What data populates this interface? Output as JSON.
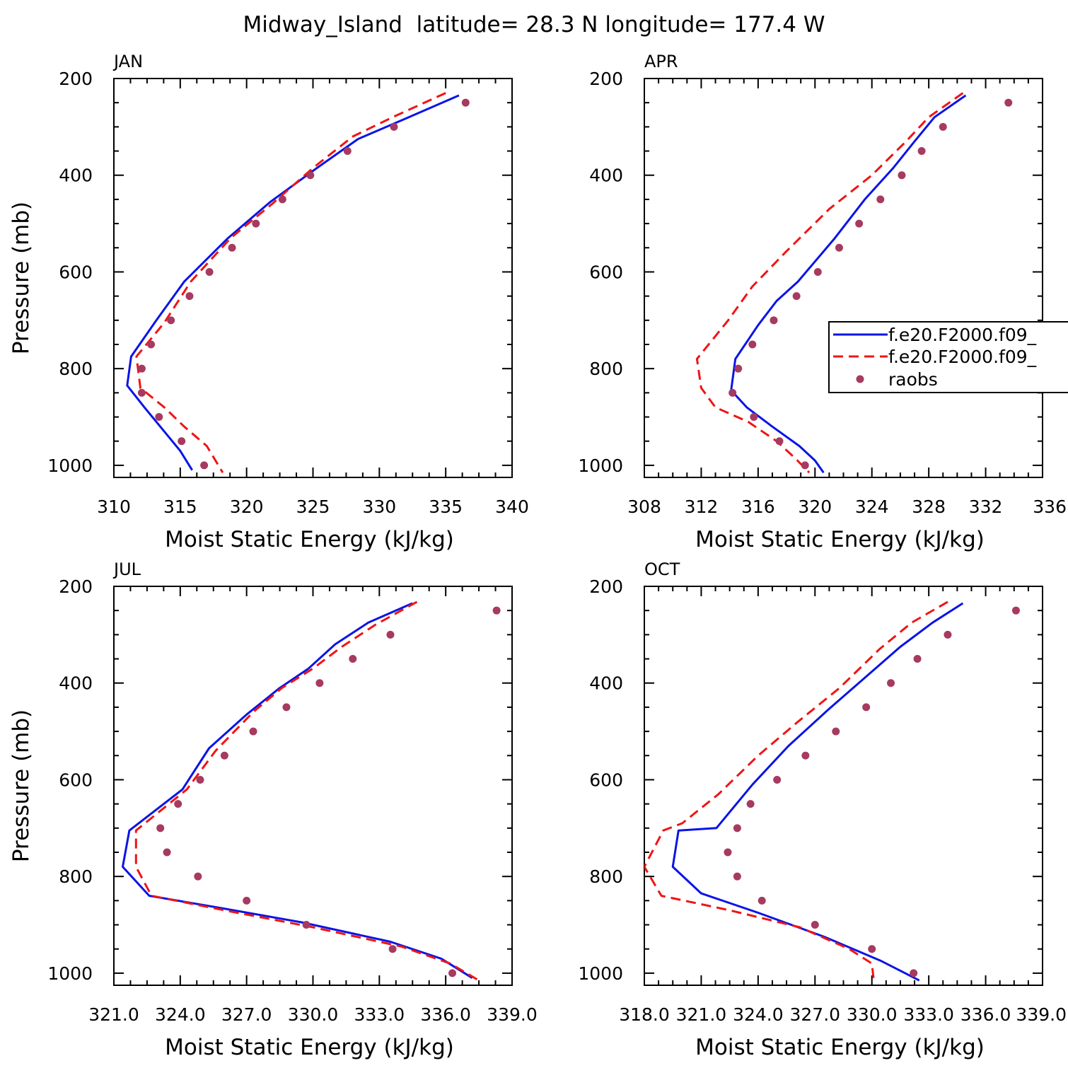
{
  "title": "Midway_Island  latitude= 28.3 N longitude= 177.4 W",
  "colors": {
    "series_solid": "#0a14e6",
    "series_dashed": "#f01414",
    "series_dots": "#a63a60"
  },
  "legend": {
    "placement": "right, overlapping APR panel",
    "entries": [
      "f.e20.F2000.f09_",
      "f.e20.F2000.f09_",
      "raobs"
    ]
  },
  "chart_data": [
    {
      "type": "line",
      "panel": "JAN",
      "title": "JAN",
      "xlabel": "Moist Static Energy (kJ/kg)",
      "ylabel": "Pressure (mb)",
      "xlim": [
        310,
        340
      ],
      "ylim": [
        1025,
        200
      ],
      "y_reversed": true,
      "xticks": [
        "310",
        "315",
        "320",
        "325",
        "330",
        "335",
        "340"
      ],
      "yticks": [
        "200",
        "400",
        "600",
        "800",
        "1000"
      ],
      "series": [
        {
          "style": "solid",
          "x": [
            336.0,
            331.8,
            328.4,
            325.3,
            321.8,
            318.6,
            315.3,
            313.2,
            311.3,
            311.0,
            312.3,
            313.8,
            315.0,
            315.9
          ],
          "y": [
            235,
            285,
            325,
            385,
            455,
            530,
            620,
            700,
            775,
            835,
            880,
            930,
            970,
            1010
          ]
        },
        {
          "style": "dashed",
          "x": [
            335.0,
            331.0,
            328.0,
            325.0,
            321.9,
            318.8,
            315.8,
            313.8,
            311.7,
            312.0,
            313.8,
            315.3,
            317.0,
            318.2
          ],
          "y": [
            230,
            280,
            320,
            385,
            460,
            530,
            620,
            705,
            775,
            840,
            880,
            920,
            960,
            1015
          ]
        },
        {
          "style": "dots",
          "x": [
            336.5,
            331.1,
            327.6,
            324.8,
            322.7,
            320.7,
            318.9,
            317.2,
            315.7,
            314.3,
            312.8,
            312.1,
            312.1,
            313.4,
            315.1,
            316.8
          ],
          "y": [
            250,
            300,
            350,
            400,
            450,
            500,
            550,
            600,
            650,
            700,
            750,
            800,
            850,
            900,
            950,
            1000
          ]
        }
      ]
    },
    {
      "type": "line",
      "panel": "APR",
      "title": "APR",
      "xlabel": "Moist Static Energy (kJ/kg)",
      "ylabel": "",
      "xlim": [
        308,
        336
      ],
      "ylim": [
        1025,
        200
      ],
      "y_reversed": true,
      "xticks": [
        "308",
        "312",
        "316",
        "320",
        "324",
        "328",
        "332",
        "336"
      ],
      "yticks": [
        "200",
        "400",
        "600",
        "800",
        "1000"
      ],
      "series": [
        {
          "style": "solid",
          "x": [
            330.6,
            328.4,
            327.0,
            325.5,
            323.5,
            321.4,
            318.8,
            317.3,
            316.0,
            314.4,
            314.1,
            315.2,
            317.0,
            318.9,
            320.0,
            320.6
          ],
          "y": [
            235,
            280,
            330,
            385,
            450,
            530,
            620,
            660,
            710,
            780,
            845,
            880,
            920,
            960,
            990,
            1015
          ]
        },
        {
          "style": "dashed",
          "x": [
            330.4,
            328.0,
            326.4,
            324.0,
            321.0,
            317.9,
            315.6,
            313.9,
            311.7,
            312.0,
            313.0,
            315.3,
            317.3,
            318.6,
            319.6
          ],
          "y": [
            230,
            280,
            330,
            400,
            470,
            560,
            630,
            700,
            780,
            840,
            880,
            910,
            950,
            985,
            1015
          ]
        },
        {
          "style": "dots",
          "x": [
            333.6,
            329.0,
            327.5,
            326.1,
            324.6,
            323.1,
            321.7,
            320.2,
            318.7,
            317.1,
            315.6,
            314.6,
            314.2,
            315.7,
            317.5,
            319.3
          ],
          "y": [
            250,
            300,
            350,
            400,
            450,
            500,
            550,
            600,
            650,
            700,
            750,
            800,
            850,
            900,
            950,
            1000
          ]
        }
      ]
    },
    {
      "type": "line",
      "panel": "JUL",
      "title": "JUL",
      "xlabel": "Moist Static Energy (kJ/kg)",
      "ylabel": "Pressure (mb)",
      "xlim": [
        321.0,
        339.0
      ],
      "ylim": [
        1025,
        200
      ],
      "y_reversed": true,
      "xticks": [
        "321.0",
        "324.0",
        "327.0",
        "330.0",
        "333.0",
        "336.0",
        "339.0"
      ],
      "yticks": [
        "200",
        "400",
        "600",
        "800",
        "1000"
      ],
      "series": [
        {
          "style": "solid",
          "x": [
            334.5,
            332.5,
            331.0,
            329.8,
            328.5,
            327.0,
            325.3,
            324.1,
            321.7,
            321.4,
            322.6,
            325.8,
            329.5,
            333.5,
            335.8,
            337.2
          ],
          "y": [
            235,
            275,
            320,
            370,
            410,
            465,
            535,
            620,
            705,
            780,
            840,
            865,
            895,
            935,
            970,
            1010
          ]
        },
        {
          "style": "dashed",
          "x": [
            334.7,
            332.8,
            331.3,
            330.0,
            328.6,
            327.3,
            325.6,
            324.3,
            322.0,
            322.0,
            322.7,
            326.0,
            330.0,
            334.0,
            336.2,
            337.5
          ],
          "y": [
            232,
            280,
            325,
            370,
            410,
            460,
            540,
            620,
            705,
            780,
            840,
            870,
            905,
            945,
            980,
            1015
          ]
        },
        {
          "style": "dots",
          "x": [
            338.3,
            333.5,
            331.8,
            330.3,
            328.8,
            327.3,
            326.0,
            324.9,
            323.9,
            323.1,
            323.4,
            324.8,
            327.0,
            329.7,
            333.6,
            336.3
          ],
          "y": [
            250,
            300,
            350,
            400,
            450,
            500,
            550,
            600,
            650,
            700,
            750,
            800,
            850,
            900,
            950,
            1000
          ]
        }
      ]
    },
    {
      "type": "line",
      "panel": "OCT",
      "title": "OCT",
      "xlabel": "Moist Static Energy (kJ/kg)",
      "ylabel": "",
      "xlim": [
        318.0,
        339.0
      ],
      "ylim": [
        1025,
        200
      ],
      "y_reversed": true,
      "xticks": [
        "318.0",
        "321.0",
        "324.0",
        "327.0",
        "330.0",
        "333.0",
        "336.0",
        "339.0"
      ],
      "yticks": [
        "200",
        "400",
        "600",
        "800",
        "1000"
      ],
      "series": [
        {
          "style": "solid",
          "x": [
            334.8,
            333.2,
            331.5,
            329.6,
            327.7,
            325.6,
            323.7,
            321.8,
            319.8,
            319.5,
            321.0,
            324.0,
            327.5,
            330.5,
            332.0,
            332.5
          ],
          "y": [
            235,
            275,
            325,
            390,
            455,
            530,
            610,
            700,
            705,
            780,
            835,
            875,
            925,
            975,
            1005,
            1015
          ]
        },
        {
          "style": "dashed",
          "x": [
            334.0,
            332.1,
            330.4,
            328.3,
            326.1,
            324.0,
            321.9,
            320.0,
            319.0,
            318.0,
            318.9,
            322.5,
            326.2,
            328.8,
            330.0,
            330.1
          ],
          "y": [
            232,
            275,
            330,
            410,
            480,
            550,
            630,
            690,
            705,
            780,
            840,
            870,
            905,
            950,
            980,
            1015
          ]
        },
        {
          "style": "dots",
          "x": [
            337.6,
            334.0,
            332.4,
            331.0,
            329.7,
            328.1,
            326.5,
            325.0,
            323.6,
            322.9,
            322.4,
            322.9,
            324.2,
            327.0,
            330.0,
            332.2
          ],
          "y": [
            250,
            300,
            350,
            400,
            450,
            500,
            550,
            600,
            650,
            700,
            750,
            800,
            850,
            900,
            950,
            1000
          ]
        }
      ]
    }
  ]
}
